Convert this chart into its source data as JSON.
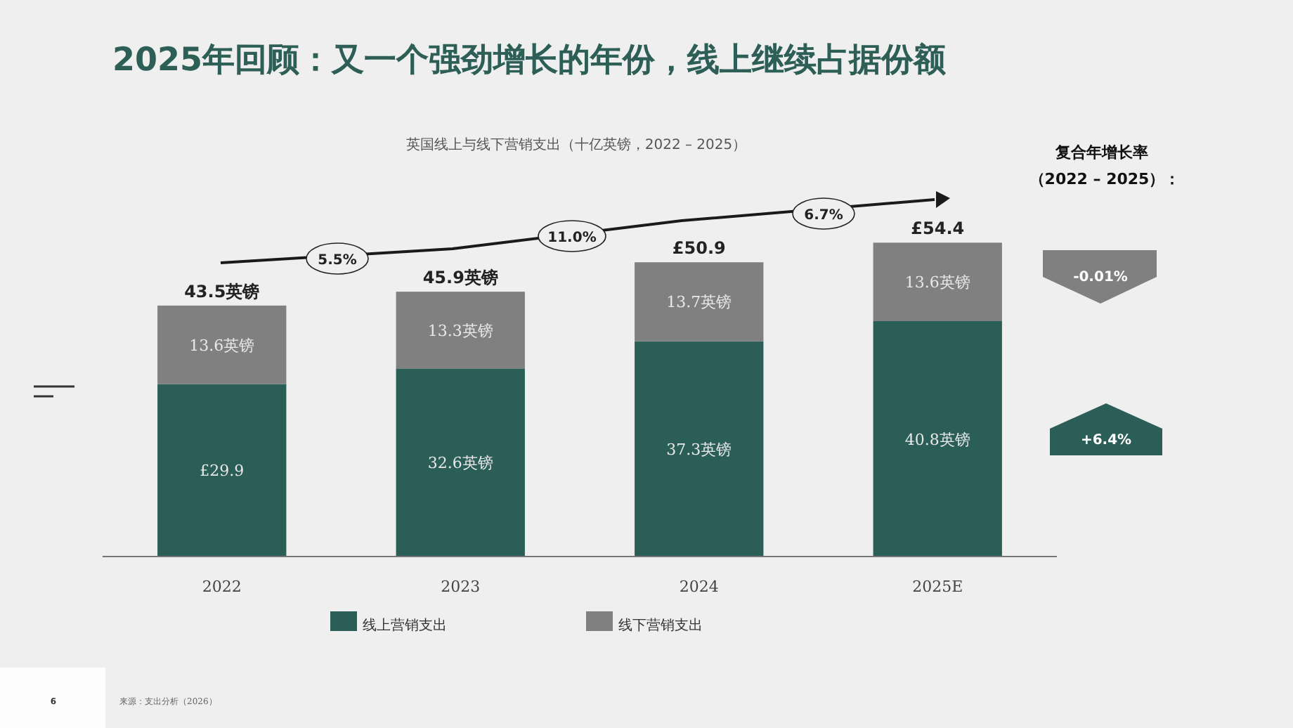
{
  "chart_data": {
    "type": "bar",
    "title": "2025年回顾：又一个强劲增长的年份，线上继续占据份额",
    "subtitle": "英国线上与线下营销支出（十亿英镑，2022 – 2025）",
    "categories": [
      "2022",
      "2023",
      "2024",
      "2025E"
    ],
    "stacked": true,
    "legend": "bottom",
    "series": [
      {
        "name": "线上营销支出",
        "color": "#2b5e56",
        "values": [
          29.9,
          32.6,
          37.3,
          40.8
        ],
        "value_labels": [
          "£29.9",
          "32.6英镑",
          "37.3英镑",
          "40.8英镑"
        ]
      },
      {
        "name": "线下营销支出",
        "color": "#808080",
        "values": [
          13.6,
          13.3,
          13.7,
          13.6
        ],
        "value_labels": [
          "13.6英镑",
          "13.3英镑",
          "13.7英镑",
          "13.6英镑"
        ]
      }
    ],
    "totals": [
      "43.5英镑",
      "45.9英镑",
      "£50.9",
      "£54.4"
    ],
    "annotations": [
      "5.5%",
      "11.0%",
      "6.7%",
      "复合年增长率",
      "（2022 – 2025）：",
      "-0.01%",
      "+6.4%",
      "来源：支出分析（2026）",
      "6"
    ]
  }
}
